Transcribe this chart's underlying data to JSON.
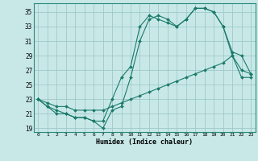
{
  "xlabel": "Humidex (Indice chaleur)",
  "background_color": "#c8e8e8",
  "grid_color": "#a0c8c8",
  "line_color": "#1a7a6a",
  "xlim": [
    -0.5,
    23.5
  ],
  "ylim": [
    18.5,
    36.2
  ],
  "xticks": [
    0,
    1,
    2,
    3,
    4,
    5,
    6,
    7,
    8,
    9,
    10,
    11,
    12,
    13,
    14,
    15,
    16,
    17,
    18,
    19,
    20,
    21,
    22,
    23
  ],
  "yticks": [
    19,
    21,
    23,
    25,
    27,
    29,
    31,
    33,
    35
  ],
  "series": {
    "line1": {
      "x": [
        0,
        1,
        2,
        3,
        4,
        5,
        6,
        7,
        8,
        9,
        10,
        11,
        12,
        13,
        14,
        15,
        16,
        17,
        18,
        19,
        20,
        21,
        22,
        23
      ],
      "y": [
        23,
        22,
        21,
        21,
        20.5,
        20.5,
        20,
        19,
        21.5,
        22,
        26,
        31,
        34,
        34.5,
        34,
        33,
        34,
        35.5,
        35.5,
        35,
        33,
        29,
        27,
        26.5
      ]
    },
    "line2": {
      "x": [
        0,
        1,
        2,
        3,
        4,
        5,
        6,
        7,
        8,
        9,
        10,
        11,
        12,
        13,
        14,
        15,
        16,
        17,
        18,
        19,
        20,
        21,
        22,
        23
      ],
      "y": [
        23,
        22,
        21.5,
        21,
        20.5,
        20.5,
        20,
        20,
        23,
        26,
        27.5,
        33,
        34.5,
        34,
        33.5,
        33,
        34,
        35.5,
        35.5,
        35,
        33,
        29.5,
        29,
        26.5
      ]
    },
    "line3": {
      "x": [
        0,
        1,
        2,
        3,
        4,
        5,
        6,
        7,
        8,
        9,
        10,
        11,
        12,
        13,
        14,
        15,
        16,
        17,
        18,
        19,
        20,
        21,
        22,
        23
      ],
      "y": [
        23,
        22.5,
        22,
        22,
        21.5,
        21.5,
        21.5,
        21.5,
        22,
        22.5,
        23,
        23.5,
        24,
        24.5,
        25,
        25.5,
        26,
        26.5,
        27,
        27.5,
        28,
        29,
        26,
        26
      ]
    }
  }
}
